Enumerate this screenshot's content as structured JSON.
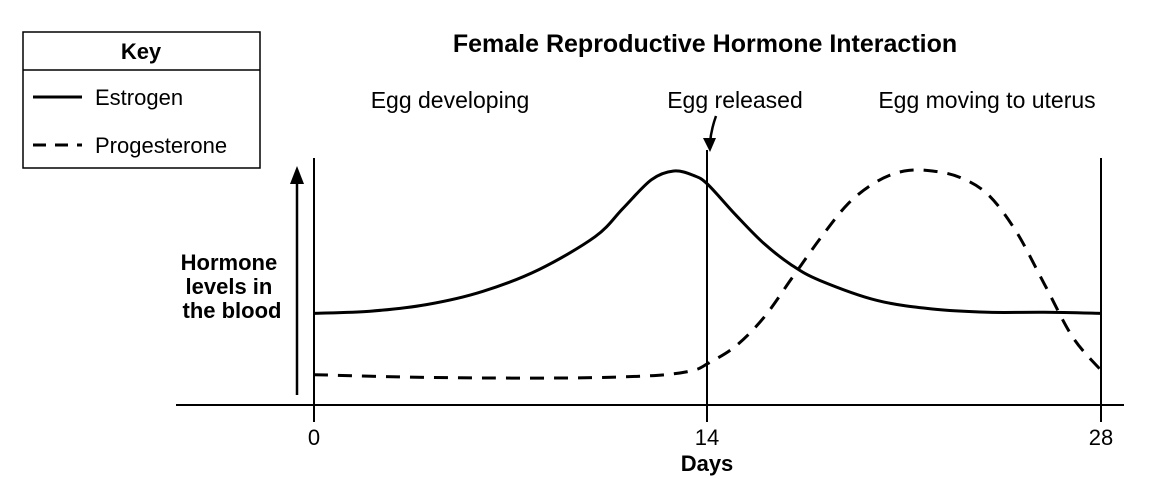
{
  "chart_data": {
    "type": "line",
    "title": "Female Reproductive Hormone Interaction",
    "xlabel": "Days",
    "ylabel": "Hormone levels in the blood",
    "ylabel_lines": [
      "Hormone",
      "levels in",
      "the blood"
    ],
    "xlim": [
      0,
      28
    ],
    "ylim": [
      0,
      1
    ],
    "xticks": [
      "0",
      "14",
      "28"
    ],
    "xtick_values": [
      0,
      14,
      28
    ],
    "grid": false,
    "key": {
      "title": "Key",
      "placement": "top-left"
    },
    "series": [
      {
        "name": "Estrogen",
        "style": "solid",
        "color": "#000000",
        "x": [
          0,
          2,
          4,
          6,
          8,
          10,
          11,
          12,
          12.8,
          13.5,
          14,
          15,
          16,
          17,
          18,
          20,
          22,
          24,
          26,
          28
        ],
        "y": [
          0.35,
          0.36,
          0.39,
          0.45,
          0.55,
          0.7,
          0.83,
          0.96,
          1.0,
          0.98,
          0.94,
          0.8,
          0.67,
          0.57,
          0.5,
          0.41,
          0.37,
          0.355,
          0.355,
          0.35
        ]
      },
      {
        "name": "Progesterone",
        "style": "dashed",
        "color": "#000000",
        "x": [
          0,
          3,
          6,
          9,
          11,
          12.5,
          13.5,
          14,
          15,
          16,
          17,
          18,
          19,
          20,
          21,
          22,
          23,
          24,
          25,
          26,
          27,
          28
        ],
        "y": [
          0.07,
          0.06,
          0.055,
          0.055,
          0.06,
          0.07,
          0.09,
          0.12,
          0.2,
          0.33,
          0.51,
          0.69,
          0.85,
          0.95,
          1.0,
          1.0,
          0.97,
          0.89,
          0.72,
          0.48,
          0.24,
          0.09
        ]
      }
    ],
    "annotations": [
      {
        "text": "Egg developing",
        "x": 5
      },
      {
        "text": "Egg released",
        "x": 14,
        "arrow": true
      },
      {
        "text": "Egg moving to uterus",
        "x": 24.5
      }
    ]
  }
}
